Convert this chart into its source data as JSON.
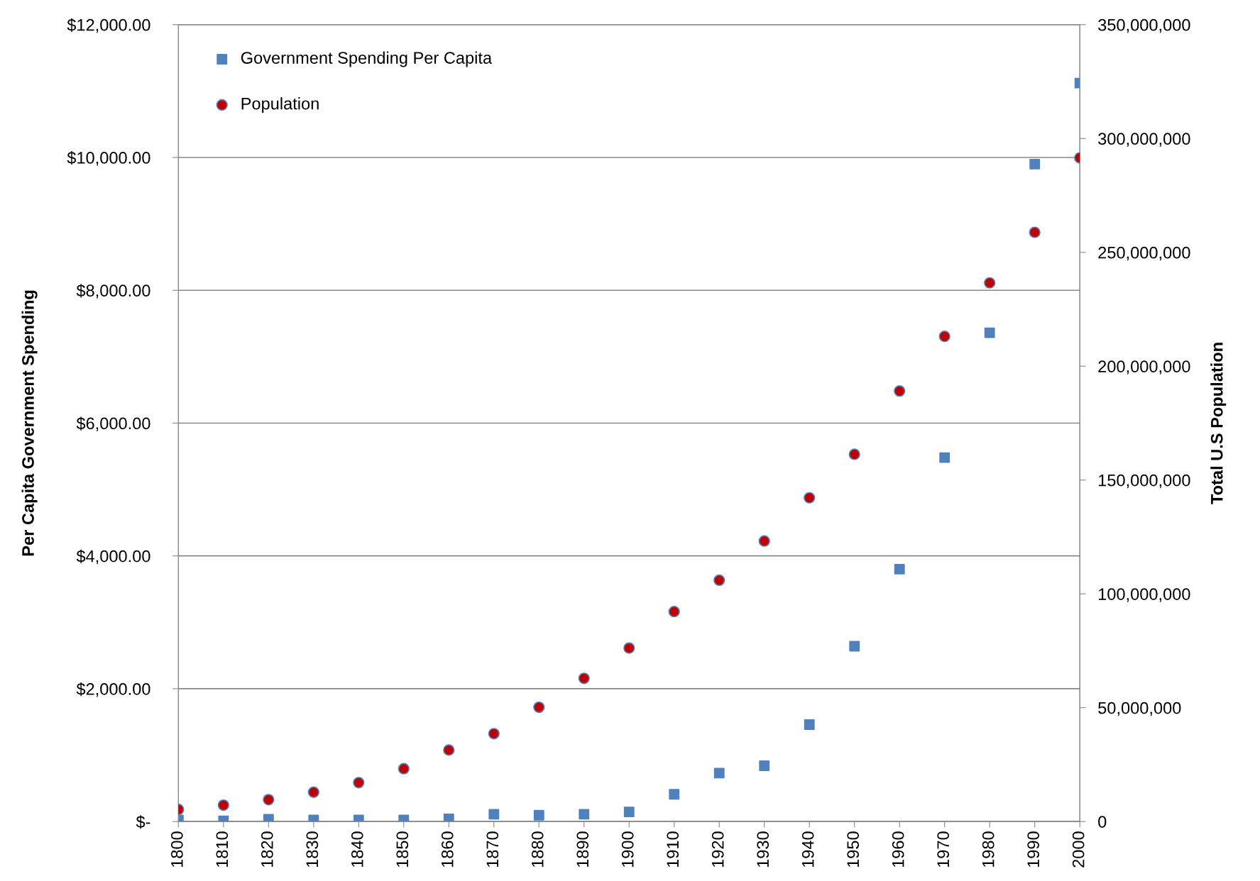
{
  "chart_data": {
    "type": "scatter",
    "ylabel": "Per Capita Government Spending",
    "y2label": "Total U.S Population",
    "x": [
      1800,
      1810,
      1820,
      1830,
      1840,
      1850,
      1860,
      1870,
      1880,
      1890,
      1900,
      1910,
      1920,
      1930,
      1940,
      1950,
      1960,
      1970,
      1980,
      1990,
      2000
    ],
    "series": [
      {
        "name": "Government Spending Per Capita",
        "color": "#4f81bd",
        "marker": "square",
        "values": [
          25,
          10,
          35,
          25,
          25,
          25,
          40,
          110,
          95,
          110,
          145,
          410,
          730,
          840,
          1460,
          2640,
          3800,
          5480,
          7360,
          9900,
          11120
        ]
      },
      {
        "name": "Population",
        "color": "#c00000",
        "marker": "circle",
        "axis": "y2",
        "values": [
          5300000,
          7200000,
          9600000,
          12900000,
          17100000,
          23200000,
          31400000,
          38600000,
          50200000,
          62900000,
          76200000,
          92200000,
          106000000,
          123200000,
          142200000,
          161300000,
          189100000,
          213100000,
          236600000,
          258800000,
          291500000
        ]
      }
    ],
    "xlim": [
      1800,
      2000
    ],
    "xticks": [
      1800,
      1810,
      1820,
      1830,
      1840,
      1850,
      1860,
      1870,
      1880,
      1890,
      1900,
      1910,
      1920,
      1930,
      1940,
      1950,
      1960,
      1970,
      1980,
      1990,
      2000
    ],
    "ylim": [
      0,
      12000
    ],
    "yticks": [
      {
        "value": 0,
        "label": "$-"
      },
      {
        "value": 2000,
        "label": "$2,000.00"
      },
      {
        "value": 4000,
        "label": "$4,000.00"
      },
      {
        "value": 6000,
        "label": "$6,000.00"
      },
      {
        "value": 8000,
        "label": "$8,000.00"
      },
      {
        "value": 10000,
        "label": "$10,000.00"
      },
      {
        "value": 12000,
        "label": "$12,000.00"
      }
    ],
    "y2lim": [
      0,
      350000000
    ],
    "y2ticks": [
      0,
      {
        "value": 50000000,
        "label": "50,000,000"
      },
      {
        "value": 100000000,
        "label": "100,000,000"
      },
      {
        "value": 150000000,
        "label": "150,000,000"
      },
      {
        "value": 200000000,
        "label": "200,000,000"
      },
      {
        "value": 250000000,
        "label": "250,000,000"
      },
      {
        "value": 300000000,
        "label": "300,000,000"
      },
      {
        "value": 350000000,
        "label": "350,000,000"
      }
    ],
    "grid": "y",
    "legend": "top left"
  }
}
